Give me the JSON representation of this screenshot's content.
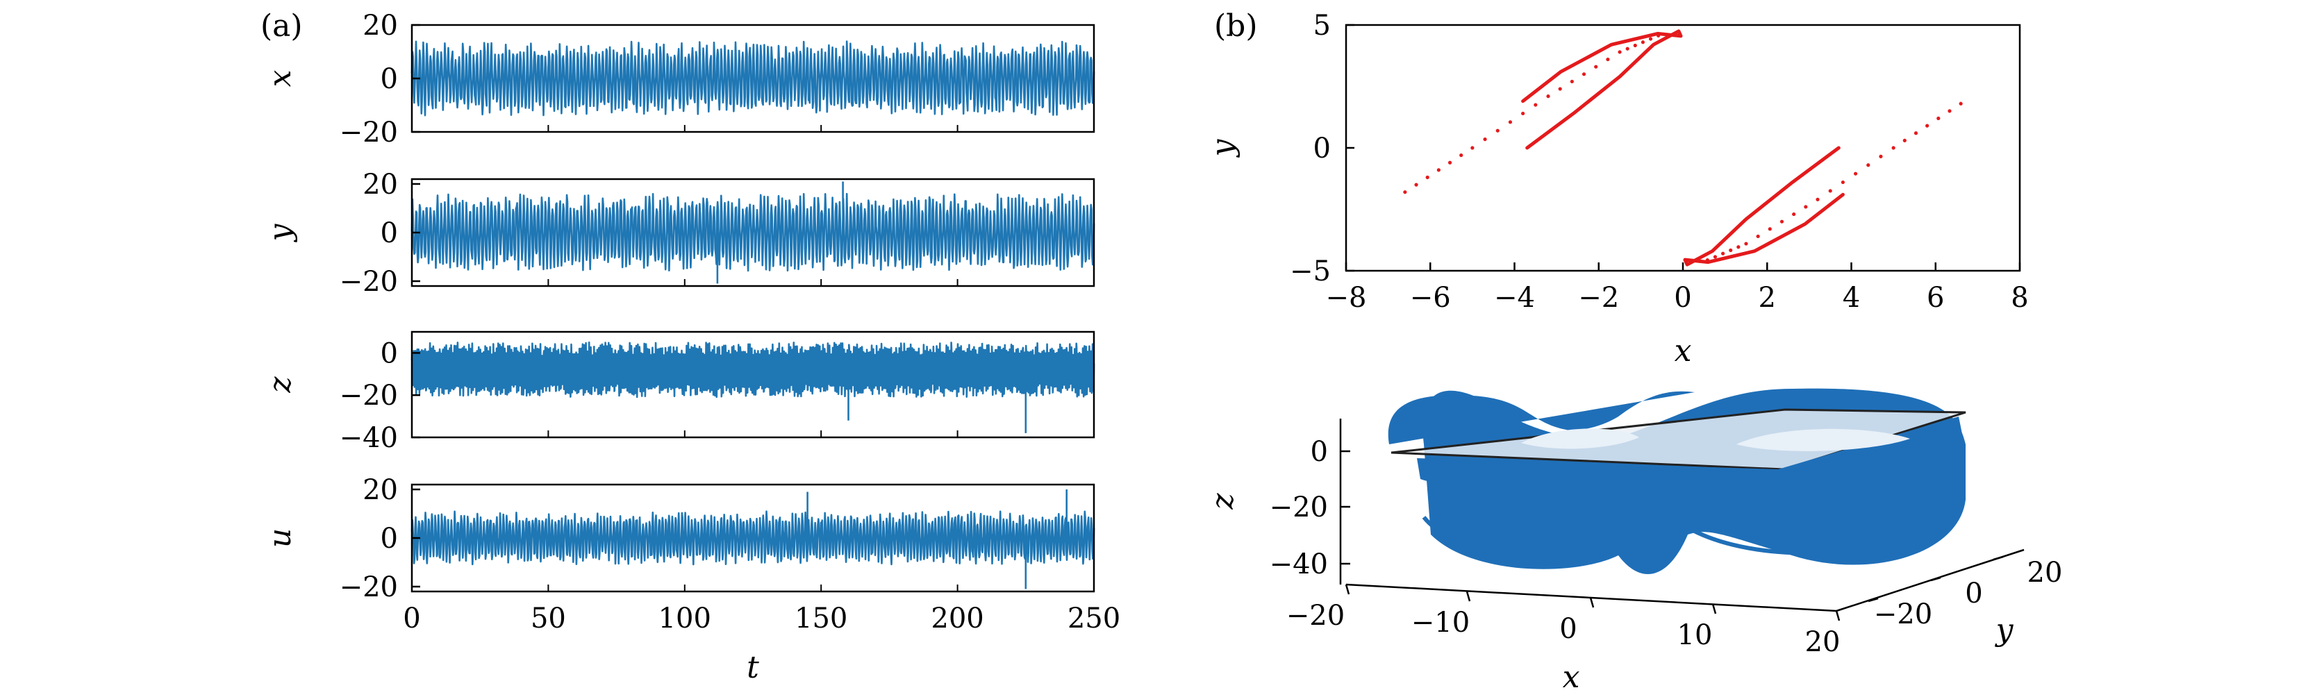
{
  "panel_a_label": "(a)",
  "panel_b_label": "(b)",
  "colors": {
    "series": "#1f77b4",
    "section": "#e41a1c",
    "plane_edge": "#222222"
  },
  "chart_data": [
    {
      "type": "line",
      "panel": "a",
      "ylabel": "x",
      "xlim": [
        0,
        250
      ],
      "ylim": [
        -20,
        20
      ],
      "yticks": [
        20,
        0,
        -20
      ],
      "ytick_labels": [
        "20",
        "0",
        "−20"
      ],
      "signal": {
        "amplitude": 14,
        "offset": 0,
        "cycles": 190,
        "spikes": []
      }
    },
    {
      "type": "line",
      "panel": "a",
      "ylabel": "y",
      "xlim": [
        0,
        250
      ],
      "ylim": [
        -22,
        22
      ],
      "yticks": [
        20,
        0,
        -20
      ],
      "ytick_labels": [
        "20",
        "0",
        "−20"
      ],
      "signal": {
        "amplitude": 16,
        "offset": 0,
        "cycles": 190,
        "spikes": [
          [
            158,
            21
          ],
          [
            112,
            -21
          ]
        ]
      }
    },
    {
      "type": "line",
      "panel": "a",
      "ylabel": "z",
      "xlim": [
        0,
        250
      ],
      "ylim": [
        -40,
        10
      ],
      "yticks": [
        0,
        -20,
        -40
      ],
      "ytick_labels": [
        "0",
        "−20",
        "−40"
      ],
      "signal": {
        "amplitude": 13,
        "offset": -8,
        "cycles": 420,
        "spikes": [
          [
            225,
            -38
          ],
          [
            160,
            -32
          ]
        ]
      }
    },
    {
      "type": "line",
      "panel": "a",
      "ylabel": "u",
      "xlim": [
        0,
        250
      ],
      "ylim": [
        -22,
        22
      ],
      "yticks": [
        20,
        0,
        -20
      ],
      "ytick_labels": [
        "20",
        "0",
        "−20"
      ],
      "xlabel": "t",
      "xticks": [
        0,
        50,
        100,
        150,
        200,
        250
      ],
      "xtick_labels": [
        "0",
        "50",
        "100",
        "150",
        "200",
        "250"
      ],
      "signal": {
        "amplitude": 11,
        "offset": 0,
        "cycles": 210,
        "spikes": [
          [
            145,
            19
          ],
          [
            240,
            20
          ],
          [
            225,
            -21
          ]
        ]
      }
    },
    {
      "type": "scatter",
      "panel": "b-top",
      "xlabel": "x",
      "ylabel": "y",
      "xlim": [
        -8,
        8
      ],
      "ylim": [
        -5,
        5
      ],
      "xticks": [
        -8,
        -6,
        -4,
        -2,
        0,
        2,
        4,
        6,
        8
      ],
      "xtick_labels": [
        "−8",
        "−6",
        "−4",
        "−2",
        "0",
        "2",
        "4",
        "6",
        "8"
      ],
      "yticks": [
        5,
        0,
        -5
      ],
      "ytick_labels": [
        "5",
        "0",
        "−5"
      ],
      "curves": [
        {
          "points": [
            [
              -3.7,
              0.0
            ],
            [
              -2.6,
              1.4
            ],
            [
              -1.5,
              2.9
            ],
            [
              -0.7,
              4.2
            ],
            [
              -0.1,
              4.75
            ],
            [
              -0.05,
              4.55
            ],
            [
              -0.6,
              4.65
            ],
            [
              -1.7,
              4.2
            ],
            [
              -2.9,
              3.1
            ],
            [
              -3.8,
              1.9
            ]
          ]
        },
        {
          "points": [
            [
              3.7,
              0.0
            ],
            [
              2.6,
              -1.4
            ],
            [
              1.5,
              -2.9
            ],
            [
              0.7,
              -4.2
            ],
            [
              0.1,
              -4.75
            ],
            [
              0.05,
              -4.55
            ],
            [
              0.6,
              -4.65
            ],
            [
              1.7,
              -4.2
            ],
            [
              2.9,
              -3.1
            ],
            [
              3.8,
              -1.9
            ]
          ]
        },
        {
          "points": [
            [
              -6.6,
              -1.8
            ],
            [
              -5.0,
              0.0
            ],
            [
              -3.2,
              2.1
            ],
            [
              -1.5,
              3.9
            ],
            [
              -0.4,
              4.7
            ]
          ],
          "sparse": true
        },
        {
          "points": [
            [
              6.6,
              1.8
            ],
            [
              5.0,
              0.0
            ],
            [
              3.2,
              -2.1
            ],
            [
              1.5,
              -3.9
            ],
            [
              0.4,
              -4.7
            ]
          ],
          "sparse": true
        }
      ]
    },
    {
      "type": "surface3d",
      "panel": "b-bottom",
      "xlabel": "x",
      "ylabel": "y",
      "zlabel": "z",
      "xlim": [
        -20,
        20
      ],
      "ylim": [
        -30,
        30
      ],
      "zlim": [
        -45,
        10
      ],
      "xtick_labels": [
        "−20",
        "−10",
        "0",
        "10",
        "20"
      ],
      "ytick_labels": [
        "−20",
        "0",
        "20"
      ],
      "ztick_labels": [
        "0",
        "−20",
        "−40"
      ]
    }
  ]
}
